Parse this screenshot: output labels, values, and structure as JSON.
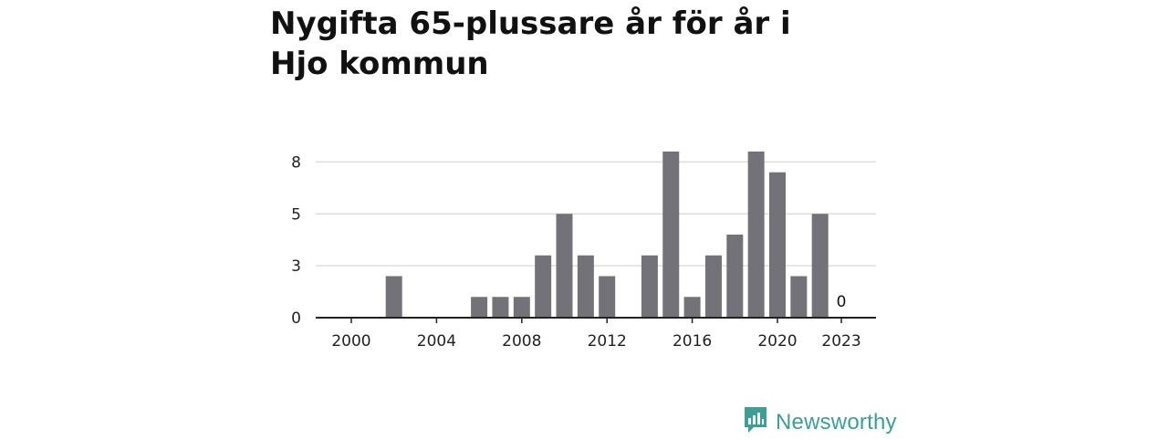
{
  "chart_data": {
    "type": "bar",
    "title": "Nygifta 65-plussare år för år i Hjo kommun",
    "x": [
      2000,
      2001,
      2002,
      2003,
      2004,
      2005,
      2006,
      2007,
      2008,
      2009,
      2010,
      2011,
      2012,
      2013,
      2014,
      2015,
      2016,
      2017,
      2018,
      2019,
      2020,
      2021,
      2022,
      2023
    ],
    "values": [
      0,
      0,
      2,
      0,
      0,
      0,
      1,
      1,
      1,
      3,
      5,
      3,
      2,
      0,
      3,
      8,
      1,
      3,
      4,
      8,
      7,
      2,
      5,
      0
    ],
    "x_tick_labels": [
      "2000",
      "2004",
      "2008",
      "2012",
      "2016",
      "2020",
      "2023"
    ],
    "y_ticks": [
      {
        "value": 0,
        "label": "0"
      },
      {
        "value": 2.5,
        "label": "3"
      },
      {
        "value": 5,
        "label": "5"
      },
      {
        "value": 7.5,
        "label": "8"
      }
    ],
    "ylim": [
      0,
      8
    ],
    "data_labels": [
      {
        "x": 2023,
        "text": "0"
      }
    ],
    "xlabel": "",
    "ylabel": "",
    "grid": true,
    "bar_color": "#737278",
    "grid_color": "#dddddd"
  },
  "brand": {
    "name": "Newsworthy",
    "icon": "newsworthy-logo-icon",
    "color": "#3d9e96"
  }
}
